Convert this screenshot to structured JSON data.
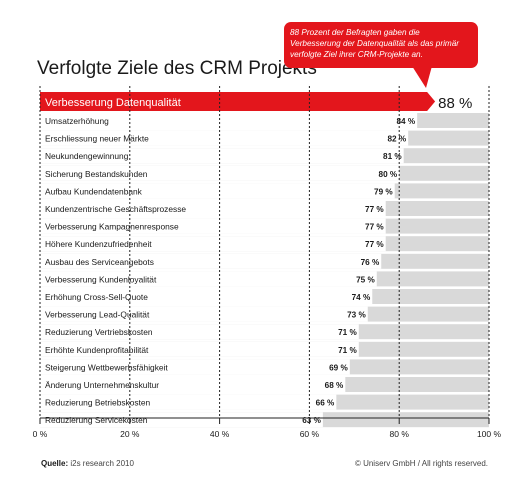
{
  "title": "Verfolgte Ziele des CRM Projekts",
  "callout": {
    "text": "88 Prozent der Befragten gaben die Verbesserung der Datenqualität als das primär verfolgte Ziel ihrer CRM-Projekte an."
  },
  "footer": {
    "source_label": "Quelle:",
    "source_text": " i2s research 2010",
    "copyright": "© Uniserv GmbH / All rights reserved."
  },
  "colors": {
    "accent": "#e3161c",
    "row_background": "#d9d9d9",
    "bar_fill": "#ffffff"
  },
  "chart_data": {
    "type": "bar",
    "orientation": "horizontal",
    "title": "Verfolgte Ziele des CRM Projekts",
    "xlim": [
      0,
      100
    ],
    "x_ticks": [
      "0 %",
      "20 %",
      "40 %",
      "60 %",
      "80 %",
      "100 %"
    ],
    "grid": true,
    "categories": [
      "Verbesserung Datenqualität",
      "Umsatzerhöhung",
      "Erschliessung neuer Märkte",
      "Neukundengewinnung",
      "Sicherung Bestandskunden",
      "Aufbau Kundendatenbank",
      "Kundenzentrische Geschäftsprozesse",
      "Verbesserung Kampagnenresponse",
      "Höhere Kundenzufriedenheit",
      "Ausbau des Serviceangebots",
      "Verbesserung Kundenloyalität",
      "Erhöhung Cross-Sell-Quote",
      "Verbesserung Lead-Qualität",
      "Reduzierung Vertriebskosten",
      "Erhöhte Kundenprofitabilität",
      "Steigerung Wettbewerbsfähigkeit",
      "Änderung Unternehmenskultur",
      "Reduzierung Betriebskosten",
      "Reduzierung Servicekosten"
    ],
    "values": [
      88,
      84,
      82,
      81,
      80,
      79,
      77,
      77,
      77,
      76,
      75,
      74,
      73,
      71,
      71,
      69,
      68,
      66,
      63
    ],
    "value_labels": [
      "88 %",
      "84 %",
      "82 %",
      "81 %",
      "80 %",
      "79 %",
      "77 %",
      "77 %",
      "77 %",
      "76 %",
      "75 %",
      "74 %",
      "73 %",
      "71 %",
      "71 %",
      "69 %",
      "68 %",
      "66 %",
      "63 %"
    ]
  }
}
